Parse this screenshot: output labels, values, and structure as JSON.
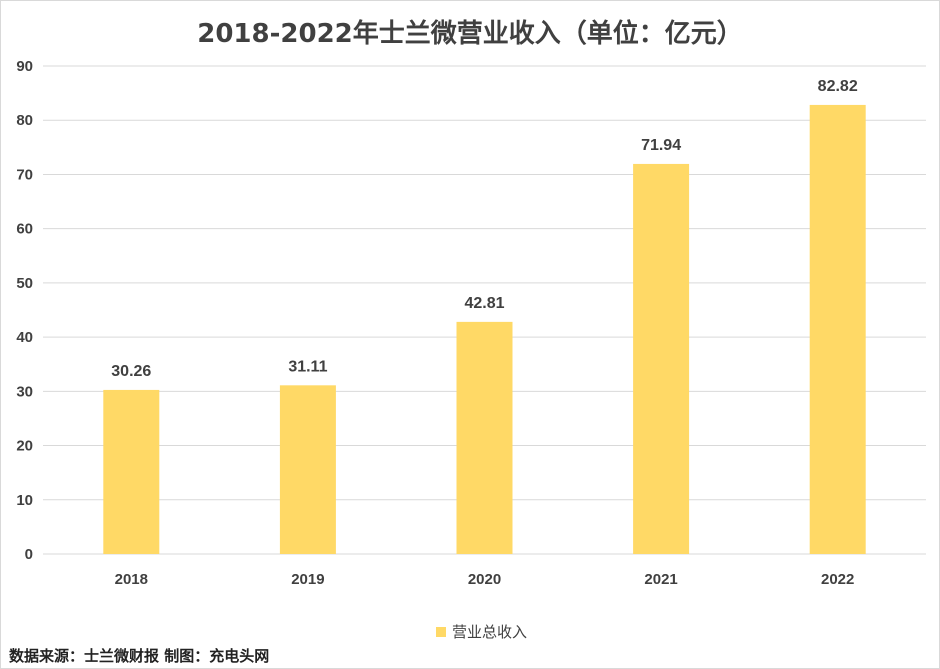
{
  "chart_data": {
    "type": "bar",
    "title": "2018-2022年士兰微营业收入（单位：亿元）",
    "categories": [
      "2018",
      "2019",
      "2020",
      "2021",
      "2022"
    ],
    "series": [
      {
        "name": "营业总收入",
        "values": [
          30.26,
          31.11,
          42.81,
          71.94,
          82.82
        ],
        "color": "#FFD966"
      }
    ],
    "data_labels": [
      "30.26",
      "31.11",
      "42.81",
      "71.94",
      "82.82"
    ],
    "y_ticks": [
      "0",
      "10",
      "20",
      "30",
      "40",
      "50",
      "60",
      "70",
      "80",
      "90"
    ],
    "ylim": [
      0,
      90
    ],
    "grid": true,
    "legend_position": "bottom"
  },
  "source_note": "数据来源：士兰微财报  制图：充电头网"
}
